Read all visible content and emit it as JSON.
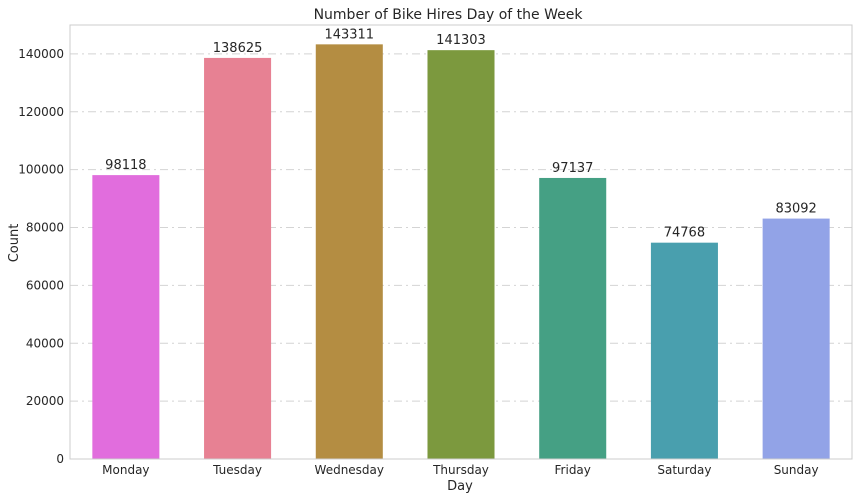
{
  "chart_data": {
    "type": "bar",
    "title": "Number of Bike Hires Day of the Week",
    "xlabel": "Day",
    "ylabel": "Count",
    "categories": [
      "Monday",
      "Tuesday",
      "Wednesday",
      "Thursday",
      "Friday",
      "Saturday",
      "Sunday"
    ],
    "values": [
      98118,
      138625,
      143311,
      141303,
      97137,
      74768,
      83092
    ],
    "data_labels": [
      "98118",
      "138625",
      "143311",
      "141303",
      "97137",
      "74768",
      "83092"
    ],
    "colors": [
      "#e16ddd",
      "#e78193",
      "#b48d42",
      "#7c993e",
      "#45a084",
      "#499fae",
      "#92a3e7"
    ],
    "ylim": [
      0,
      150000
    ],
    "yticks": [
      0,
      20000,
      40000,
      60000,
      80000,
      100000,
      120000,
      140000
    ],
    "ytick_labels": [
      "0",
      "20000",
      "40000",
      "60000",
      "80000",
      "100000",
      "120000",
      "140000"
    ],
    "grid": "horizontal dashed"
  }
}
